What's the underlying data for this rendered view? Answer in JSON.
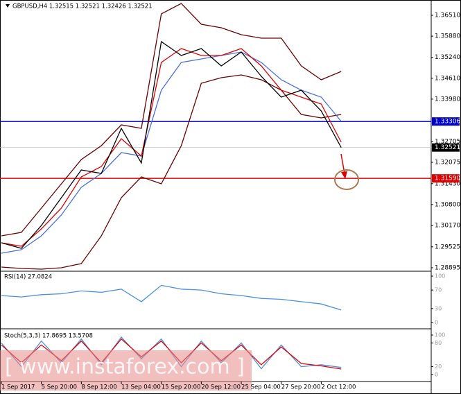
{
  "chart_data": [
    {
      "type": "line",
      "title": "GBPUSD,H4  1.32515 1.32521 1.32426 1.32521",
      "x": [
        0,
        8,
        16,
        24,
        32,
        40,
        48,
        56,
        64,
        72,
        80,
        88,
        96,
        104,
        112,
        120,
        128,
        136
      ],
      "series": [
        {
          "color": "#6b0000",
          "values": [
            1.29857,
            1.29962,
            1.30694,
            1.31426,
            1.32158,
            1.32577,
            1.33204,
            1.331,
            1.36552,
            1.36865,
            1.36238,
            1.36133,
            1.35924,
            1.35819,
            1.35819,
            1.34983,
            1.34564,
            1.34815
          ]
        },
        {
          "color": "#6b0000",
          "values": [
            1.28916,
            1.28874,
            1.28853,
            1.28895,
            1.2902,
            1.29857,
            1.31008,
            1.31635,
            1.31426,
            1.32577,
            1.3446,
            1.34627,
            1.34711,
            1.34564,
            1.3425,
            1.33518,
            1.33414,
            1.33518
          ]
        },
        {
          "color": "#4a6fe0",
          "values": [
            1.29334,
            1.29439,
            1.29857,
            1.30485,
            1.31322,
            1.3174,
            1.32368,
            1.32263,
            1.3425,
            1.35087,
            1.35192,
            1.35296,
            1.35401,
            1.35087,
            1.34564,
            1.3425,
            1.34041,
            1.33309
          ]
        },
        {
          "color": "#e00000",
          "values": [
            1.29648,
            1.29543,
            1.30066,
            1.30694,
            1.31635,
            1.31949,
            1.32786,
            1.32263,
            1.35087,
            1.35506,
            1.35296,
            1.35296,
            1.35506,
            1.34983,
            1.3425,
            1.34041,
            1.33832,
            1.32681
          ]
        },
        {
          "color": "#000000",
          "values": [
            1.29648,
            1.2948,
            1.30171,
            1.31008,
            1.31844,
            1.3174,
            1.331,
            1.32054,
            1.35715,
            1.35296,
            1.35505,
            1.34982,
            1.35401,
            1.34669,
            1.34041,
            1.3425,
            1.33623,
            1.32521
          ]
        }
      ],
      "xlim": [
        0,
        172
      ],
      "ylim": [
        1.28811,
        1.36928
      ],
      "yticks": [
        {
          "value": 1.3651,
          "label": "1.36510"
        },
        {
          "value": 1.3588,
          "label": "1.35880"
        },
        {
          "value": 1.3524,
          "label": "1.35240"
        },
        {
          "value": 1.3461,
          "label": "1.34610"
        },
        {
          "value": 1.3398,
          "label": "1.33980"
        },
        1.32705,
        1.32075,
        {
          "value": 1.3143,
          "label": "1.31430"
        },
        {
          "value": 1.308,
          "label": "1.30800"
        },
        {
          "value": 1.3017,
          "label": "1.30170"
        },
        1.29525,
        1.28895
      ],
      "levels": [
        {
          "value": 1.33306,
          "color": "#0000cc"
        },
        {
          "value": 1.3159,
          "label": "1.31590",
          "color": "#e00000"
        }
      ],
      "last_price": 1.32521
    },
    {
      "type": "line",
      "title": "RSI(14) 27.0824",
      "x": [
        0,
        8,
        16,
        24,
        32,
        40,
        48,
        56,
        64,
        72,
        80,
        88,
        96,
        104,
        112,
        120,
        128,
        136
      ],
      "series": [
        {
          "color": "#4a90e2",
          "values": [
            58,
            55,
            60,
            62,
            68,
            65,
            72,
            45,
            80,
            72,
            70,
            62,
            58,
            52,
            50,
            45,
            40,
            27
          ]
        }
      ],
      "xlim": [
        0,
        172
      ],
      "ylim": [
        0,
        100
      ],
      "yticks": [
        0,
        30,
        70,
        100
      ]
    },
    {
      "type": "line",
      "title": "Stoch(5,3,3) 17.8695 13.5708",
      "x": [
        0,
        8,
        16,
        24,
        32,
        40,
        48,
        56,
        64,
        72,
        80,
        88,
        96,
        104,
        112,
        120,
        128,
        136
      ],
      "series": [
        {
          "color": "#4a90e2",
          "values": [
            80,
            20,
            85,
            30,
            90,
            25,
            95,
            40,
            90,
            20,
            85,
            30,
            80,
            15,
            75,
            20,
            25,
            18
          ]
        },
        {
          "color": "#e00000",
          "values": [
            75,
            30,
            75,
            35,
            85,
            30,
            90,
            45,
            85,
            30,
            80,
            35,
            75,
            25,
            70,
            28,
            22,
            14
          ]
        }
      ],
      "xlim": [
        0,
        172
      ],
      "ylim": [
        0,
        100
      ],
      "yticks": [
        0,
        20,
        80,
        100
      ],
      "xticks": [
        {
          "value": 0,
          "label": "1 Sep 2017"
        },
        {
          "value": 16,
          "label": "5 Sep 20:00"
        },
        {
          "value": 32,
          "label": "8 Sep 12:00"
        },
        {
          "value": 48,
          "label": "13 Sep 04:00"
        },
        {
          "value": 64,
          "label": "15 Sep 20:00"
        },
        {
          "value": 80,
          "label": "20 Sep 12:00"
        },
        {
          "value": 96,
          "label": "25 Sep 04:00"
        },
        {
          "value": 112,
          "label": "27 Sep 20:00"
        },
        {
          "value": 128,
          "label": "2 Oct 12:00"
        }
      ]
    }
  ],
  "watermark": "[ www.instaforex.com ]"
}
